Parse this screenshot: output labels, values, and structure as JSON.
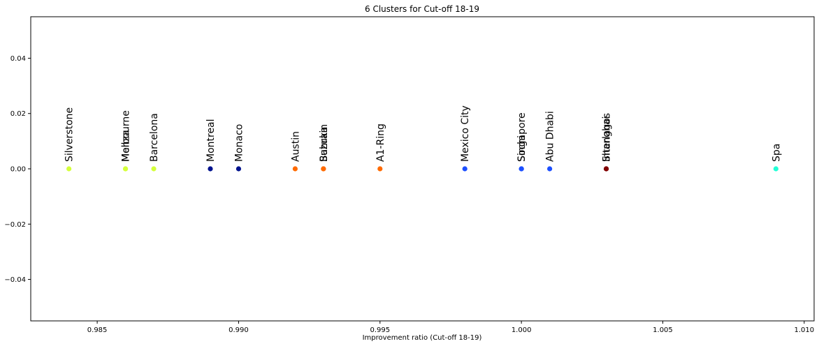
{
  "chart_data": {
    "type": "scatter",
    "title": "6 Clusters for Cut-off 18-19",
    "xlabel": "Improvement ratio (Cut-off 18-19)",
    "ylabel": "",
    "xlim": [
      0.98265,
      1.01035
    ],
    "ylim": [
      -0.055,
      0.055
    ],
    "xticks": [
      0.985,
      0.99,
      0.995,
      1.0,
      1.005,
      1.01
    ],
    "xtick_labels": [
      "0.985",
      "0.990",
      "0.995",
      "1.000",
      "1.005",
      "1.010"
    ],
    "yticks": [
      0.04,
      0.02,
      0.0,
      -0.02,
      -0.04
    ],
    "ytick_labels": [
      "0.04",
      "0.02",
      "0.00",
      "−0.02",
      "−0.04"
    ],
    "grid": false,
    "legend": "none",
    "points": [
      {
        "label": "Silverstone",
        "x": 0.984,
        "y": 0.0,
        "color": "#d4ff3a"
      },
      {
        "label": "Melbourne",
        "x": 0.986,
        "y": 0.0,
        "color": "#d4ff3a"
      },
      {
        "label": "Monza",
        "x": 0.986,
        "y": 0.0,
        "color": "#d4ff3a"
      },
      {
        "label": "Barcelona",
        "x": 0.987,
        "y": 0.0,
        "color": "#d4ff3a"
      },
      {
        "label": "Montreal",
        "x": 0.989,
        "y": 0.0,
        "color": "#00128e"
      },
      {
        "label": "Monaco",
        "x": 0.99,
        "y": 0.0,
        "color": "#00128e"
      },
      {
        "label": "Austin",
        "x": 0.992,
        "y": 0.0,
        "color": "#ff6a00"
      },
      {
        "label": "Bahrain",
        "x": 0.993,
        "y": 0.0,
        "color": "#ff6a00"
      },
      {
        "label": "Suzuka",
        "x": 0.993,
        "y": 0.0,
        "color": "#ff6a00"
      },
      {
        "label": "A1-Ring",
        "x": 0.995,
        "y": 0.0,
        "color": "#ff6a00"
      },
      {
        "label": "Mexico City",
        "x": 0.998,
        "y": 0.0,
        "color": "#1c4fff"
      },
      {
        "label": "Singapore",
        "x": 1.0,
        "y": 0.0,
        "color": "#1c4fff"
      },
      {
        "label": "Sochi",
        "x": 1.0,
        "y": 0.0,
        "color": "#1c4fff"
      },
      {
        "label": "Abu Dhabi",
        "x": 1.001,
        "y": 0.0,
        "color": "#1c4fff"
      },
      {
        "label": "Shanghai",
        "x": 1.003,
        "y": 0.0,
        "color": "#800000"
      },
      {
        "label": "Interlagos",
        "x": 1.003,
        "y": 0.0,
        "color": "#800000"
      },
      {
        "label": "Spa",
        "x": 1.009,
        "y": 0.0,
        "color": "#21ffd6"
      }
    ]
  }
}
